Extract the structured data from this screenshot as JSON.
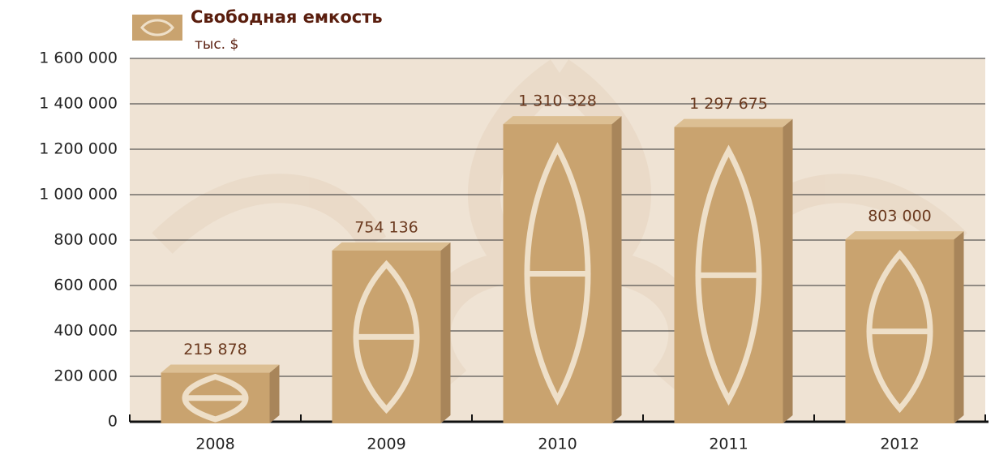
{
  "chart_data": {
    "type": "bar",
    "title": "Свободная емкость",
    "subtitle": "тыс. $",
    "categories": [
      "2008",
      "2009",
      "2010",
      "2011",
      "2012"
    ],
    "values": [
      215878,
      754136,
      1310328,
      1297675,
      803000
    ],
    "value_labels": [
      "215 878",
      "754 136",
      "1 310 328",
      "1 297 675",
      "803 000"
    ],
    "color": "#c9a36f",
    "ylim": [
      0,
      1600000
    ],
    "yticks": [
      0,
      {
        "value": 200000,
        "label": "200 000"
      },
      {
        "value": 400000,
        "label": "400 000"
      },
      {
        "value": 600000,
        "label": "600 000"
      },
      {
        "value": 800000,
        "label": "800 000"
      },
      {
        "value": 1000000,
        "label": "1 000 000"
      },
      {
        "value": 1200000,
        "label": "1 200 000"
      },
      {
        "value": 1400000,
        "label": "1 400 000"
      },
      {
        "value": 1600000,
        "label": "1 600 000"
      }
    ],
    "grid": true
  }
}
